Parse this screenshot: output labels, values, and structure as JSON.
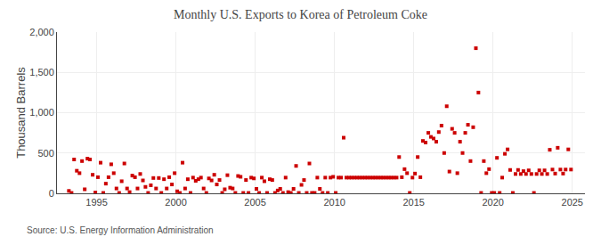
{
  "chart_data": {
    "type": "scatter",
    "title": "Monthly U.S. Exports to Korea of Petroleum Coke",
    "y_label": "Thousand Barrels",
    "annotations": [
      {
        "text": "Source: U.S. Energy Information Administration"
      }
    ],
    "color": "#CC0000",
    "marker": "square",
    "grid": true,
    "xlim": [
      1992.5,
      2025.8
    ],
    "xticks": [
      1995,
      2000,
      2005,
      2010,
      2015,
      2020,
      2025
    ],
    "ylim": [
      0,
      2000
    ],
    "yticks": [
      0,
      500,
      {
        "value": 1000,
        "label": "1,000"
      },
      {
        "value": 1500,
        "label": "1,500"
      },
      {
        "value": 2000,
        "label": "2,000"
      }
    ],
    "x": [
      1993.25,
      1993.42,
      1993.58,
      1993.75,
      1993.92,
      1994.08,
      1994.25,
      1994.42,
      1994.58,
      1994.75,
      1994.92,
      1995.08,
      1995.25,
      1995.42,
      1995.58,
      1995.75,
      1995.92,
      1996.08,
      1996.25,
      1996.42,
      1996.58,
      1996.75,
      1996.92,
      1997.08,
      1997.25,
      1997.42,
      1997.58,
      1997.75,
      1997.92,
      1998.08,
      1998.25,
      1998.42,
      1998.58,
      1998.75,
      1998.92,
      1999.08,
      1999.25,
      1999.42,
      1999.58,
      1999.75,
      1999.92,
      2000.08,
      2000.25,
      2000.42,
      2000.58,
      2000.75,
      2000.92,
      2001.08,
      2001.25,
      2001.42,
      2001.58,
      2001.75,
      2001.92,
      2002.08,
      2002.25,
      2002.42,
      2002.58,
      2002.75,
      2002.92,
      2003.08,
      2003.25,
      2003.42,
      2003.58,
      2003.75,
      2003.92,
      2004.08,
      2004.25,
      2004.42,
      2004.58,
      2004.75,
      2004.92,
      2005.08,
      2005.25,
      2005.42,
      2005.58,
      2005.75,
      2005.92,
      2006.08,
      2006.25,
      2006.42,
      2006.58,
      2006.75,
      2006.92,
      2007.08,
      2007.25,
      2007.42,
      2007.58,
      2007.75,
      2007.92,
      2008.08,
      2008.25,
      2008.42,
      2008.58,
      2008.75,
      2008.92,
      2009.08,
      2009.25,
      2009.42,
      2009.58,
      2009.75,
      2009.92,
      2010.08,
      2010.25,
      2010.42,
      2010.58,
      2010.75,
      2010.92,
      2011.08,
      2011.25,
      2011.42,
      2011.58,
      2011.75,
      2011.92,
      2012.08,
      2012.25,
      2012.42,
      2012.58,
      2012.75,
      2012.92,
      2013.08,
      2013.25,
      2013.42,
      2013.58,
      2013.75,
      2013.92,
      2014.08,
      2014.25,
      2014.42,
      2014.58,
      2014.75,
      2014.92,
      2015.08,
      2015.25,
      2015.42,
      2015.58,
      2015.75,
      2015.92,
      2016.08,
      2016.25,
      2016.42,
      2016.58,
      2016.75,
      2016.92,
      2017.08,
      2017.25,
      2017.42,
      2017.58,
      2017.75,
      2017.92,
      2018.08,
      2018.25,
      2018.42,
      2018.58,
      2018.75,
      2018.92,
      2019.08,
      2019.25,
      2019.42,
      2019.58,
      2019.75,
      2019.92,
      2020.08,
      2020.25,
      2020.42,
      2020.58,
      2020.75,
      2020.92,
      2021.08,
      2021.25,
      2021.42,
      2021.58,
      2021.75,
      2021.92,
      2022.08,
      2022.25,
      2022.42,
      2022.58,
      2022.75,
      2022.92,
      2023.08,
      2023.25,
      2023.42,
      2023.58,
      2023.75,
      2023.92,
      2024.08,
      2024.25,
      2024.42,
      2024.58,
      2024.75,
      2024.92
    ],
    "values": [
      30,
      5,
      420,
      280,
      250,
      400,
      50,
      430,
      420,
      230,
      10,
      200,
      380,
      5,
      120,
      200,
      360,
      250,
      60,
      5,
      150,
      370,
      60,
      15,
      220,
      200,
      60,
      240,
      160,
      80,
      5,
      100,
      190,
      60,
      190,
      5,
      175,
      60,
      200,
      110,
      250,
      25,
      5,
      380,
      60,
      175,
      5,
      195,
      155,
      175,
      195,
      60,
      5,
      185,
      160,
      230,
      110,
      165,
      5,
      50,
      225,
      70,
      60,
      5,
      215,
      205,
      5,
      165,
      5,
      195,
      185,
      55,
      5,
      195,
      150,
      5,
      175,
      165,
      5,
      35,
      55,
      5,
      195,
      15,
      5,
      55,
      340,
      5,
      105,
      165,
      5,
      370,
      5,
      5,
      195,
      55,
      5,
      195,
      5,
      195,
      205,
      5,
      195,
      195,
      690,
      195,
      195,
      195,
      195,
      195,
      195,
      195,
      195,
      195,
      195,
      195,
      195,
      195,
      195,
      195,
      195,
      195,
      195,
      195,
      195,
      450,
      200,
      300,
      250,
      5,
      195,
      245,
      450,
      200,
      650,
      630,
      750,
      700,
      680,
      640,
      760,
      840,
      500,
      1080,
      270,
      800,
      750,
      250,
      640,
      500,
      750,
      850,
      400,
      820,
      1800,
      1250,
      5,
      400,
      250,
      300,
      5,
      5,
      440,
      5,
      195,
      490,
      545,
      290,
      5,
      240,
      290,
      240,
      275,
      240,
      285,
      240,
      5,
      240,
      285,
      240,
      285,
      240,
      540,
      295,
      245,
      565,
      295,
      245,
      295,
      545,
      295
    ]
  }
}
